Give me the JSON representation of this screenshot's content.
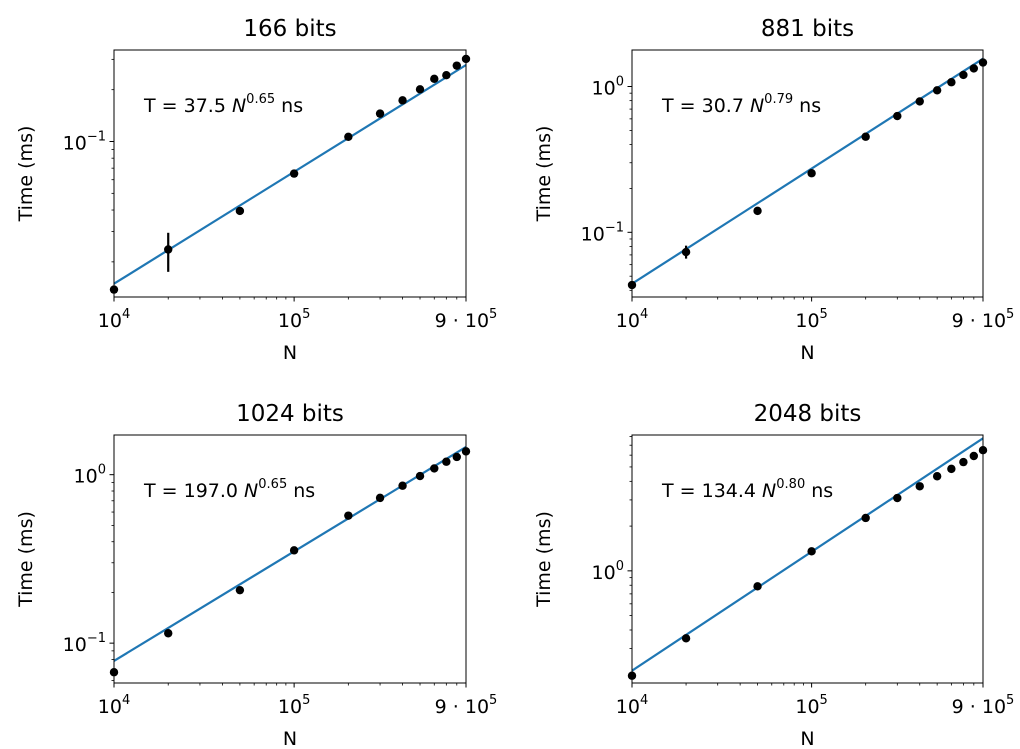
{
  "chart_data": [
    {
      "type": "scatter",
      "title": "166 bits",
      "xlabel": "N",
      "ylabel": "Time (ms)",
      "xscale": "log",
      "yscale": "log",
      "xlim": [
        10000,
        900000
      ],
      "ylim": [
        0.0125,
        0.34
      ],
      "xticks": [
        {
          "value": 10000,
          "base": "10",
          "exp": "4"
        },
        {
          "value": 100000,
          "base": "10",
          "exp": "5"
        },
        {
          "value": 900000,
          "base": "9 · 10",
          "exp": "5"
        }
      ],
      "yticks": [
        {
          "value": 0.1,
          "base": "10",
          "exp": "−1"
        }
      ],
      "annotation": {
        "prefix": "T = 37.5 ",
        "var": "N",
        "exp": "0.65",
        "suffix": " ns"
      },
      "fit": {
        "coef_ns": 37.5,
        "exponent": 0.65
      },
      "points": [
        {
          "x": 10000,
          "y": 0.0138
        },
        {
          "x": 20000,
          "y": 0.0236,
          "yerr_low": 0.0175,
          "yerr_high": 0.0295
        },
        {
          "x": 50000,
          "y": 0.0395
        },
        {
          "x": 100000,
          "y": 0.0651
        },
        {
          "x": 200000,
          "y": 0.1065
        },
        {
          "x": 300000,
          "y": 0.1452
        },
        {
          "x": 400000,
          "y": 0.1734
        },
        {
          "x": 500000,
          "y": 0.201
        },
        {
          "x": 600000,
          "y": 0.2312
        },
        {
          "x": 700000,
          "y": 0.2427
        },
        {
          "x": 800000,
          "y": 0.2758
        },
        {
          "x": 900000,
          "y": 0.3016
        }
      ]
    },
    {
      "type": "scatter",
      "title": "881 bits",
      "xlabel": "N",
      "ylabel": "Time (ms)",
      "xscale": "log",
      "yscale": "log",
      "xlim": [
        10000,
        900000
      ],
      "ylim": [
        0.036,
        1.78
      ],
      "xticks": [
        {
          "value": 10000,
          "base": "10",
          "exp": "4"
        },
        {
          "value": 100000,
          "base": "10",
          "exp": "5"
        },
        {
          "value": 900000,
          "base": "9 · 10",
          "exp": "5"
        }
      ],
      "yticks": [
        {
          "value": 0.1,
          "base": "10",
          "exp": "−1"
        },
        {
          "value": 1,
          "base": "10",
          "exp": "0"
        }
      ],
      "annotation": {
        "prefix": "T = 30.7 ",
        "var": "N",
        "exp": "0.79",
        "suffix": " ns"
      },
      "fit": {
        "coef_ns": 30.7,
        "exponent": 0.79
      },
      "points": [
        {
          "x": 10000,
          "y": 0.0435
        },
        {
          "x": 20000,
          "y": 0.0732,
          "yerr_low": 0.066,
          "yerr_high": 0.081
        },
        {
          "x": 50000,
          "y": 0.1403
        },
        {
          "x": 100000,
          "y": 0.2542
        },
        {
          "x": 200000,
          "y": 0.4525
        },
        {
          "x": 300000,
          "y": 0.627
        },
        {
          "x": 400000,
          "y": 0.79
        },
        {
          "x": 500000,
          "y": 0.942
        },
        {
          "x": 600000,
          "y": 1.07
        },
        {
          "x": 700000,
          "y": 1.2
        },
        {
          "x": 800000,
          "y": 1.33
        },
        {
          "x": 900000,
          "y": 1.46
        }
      ]
    },
    {
      "type": "scatter",
      "title": "1024 bits",
      "xlabel": "N",
      "ylabel": "Time (ms)",
      "xscale": "log",
      "yscale": "log",
      "xlim": [
        10000,
        900000
      ],
      "ylim": [
        0.058,
        1.72
      ],
      "xticks": [
        {
          "value": 10000,
          "base": "10",
          "exp": "4"
        },
        {
          "value": 100000,
          "base": "10",
          "exp": "5"
        },
        {
          "value": 900000,
          "base": "9 · 10",
          "exp": "5"
        }
      ],
      "yticks": [
        {
          "value": 0.1,
          "base": "10",
          "exp": "−1"
        },
        {
          "value": 1,
          "base": "10",
          "exp": "0"
        }
      ],
      "annotation": {
        "prefix": "T = 197.0 ",
        "var": "N",
        "exp": "0.65",
        "suffix": " ns"
      },
      "fit": {
        "coef_ns": 197.0,
        "exponent": 0.65
      },
      "points": [
        {
          "x": 10000,
          "y": 0.0672
        },
        {
          "x": 20000,
          "y": 0.1145
        },
        {
          "x": 50000,
          "y": 0.2063
        },
        {
          "x": 100000,
          "y": 0.3555
        },
        {
          "x": 200000,
          "y": 0.5712
        },
        {
          "x": 300000,
          "y": 0.7283
        },
        {
          "x": 400000,
          "y": 0.8598
        },
        {
          "x": 500000,
          "y": 0.9811
        },
        {
          "x": 600000,
          "y": 1.0893
        },
        {
          "x": 700000,
          "y": 1.1937
        },
        {
          "x": 800000,
          "y": 1.2738
        },
        {
          "x": 900000,
          "y": 1.375
        }
      ]
    },
    {
      "type": "scatter",
      "title": "2048 bits",
      "xlabel": "N",
      "ylabel": "Time (ms)",
      "xscale": "log",
      "yscale": "log",
      "xlim": [
        10000,
        900000
      ],
      "ylim": [
        0.176,
        8.2
      ],
      "xticks": [
        {
          "value": 10000,
          "base": "10",
          "exp": "4"
        },
        {
          "value": 100000,
          "base": "10",
          "exp": "5"
        },
        {
          "value": 900000,
          "base": "9 · 10",
          "exp": "5"
        }
      ],
      "yticks": [
        {
          "value": 1,
          "base": "10",
          "exp": "0"
        }
      ],
      "annotation": {
        "prefix": "T = 134.4 ",
        "var": "N",
        "exp": "0.80",
        "suffix": " ns"
      },
      "fit": {
        "coef_ns": 134.4,
        "exponent": 0.8
      },
      "points": [
        {
          "x": 10000,
          "y": 0.197
        },
        {
          "x": 20000,
          "y": 0.3516
        },
        {
          "x": 50000,
          "y": 0.7867
        },
        {
          "x": 100000,
          "y": 1.353
        },
        {
          "x": 200000,
          "y": 2.268
        },
        {
          "x": 300000,
          "y": 3.089
        },
        {
          "x": 400000,
          "y": 3.706
        },
        {
          "x": 500000,
          "y": 4.329
        },
        {
          "x": 600000,
          "y": 4.852
        },
        {
          "x": 700000,
          "y": 5.389
        },
        {
          "x": 800000,
          "y": 5.924
        },
        {
          "x": 900000,
          "y": 6.48
        }
      ]
    }
  ],
  "colors": {
    "fit_line": "#1f77b4",
    "points": "#000000",
    "axes": "#000000"
  }
}
